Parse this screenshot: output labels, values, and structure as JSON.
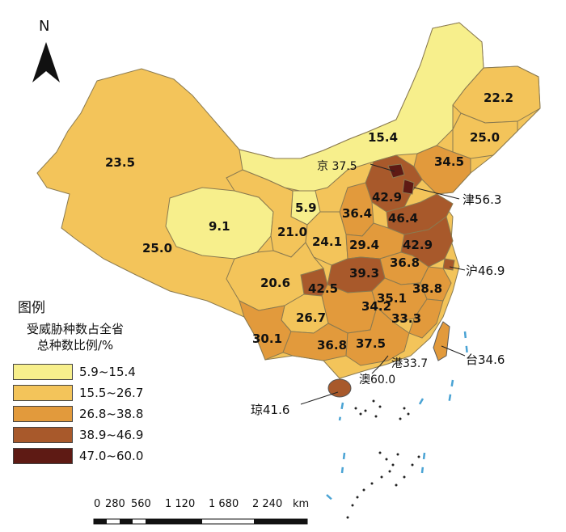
{
  "north": "N",
  "legend": {
    "title": "图例",
    "subtitle_line1": "受威胁种数占全省",
    "subtitle_line2": "总种数比例/%",
    "items": [
      {
        "range": "5.9~15.4",
        "color": "#f7ef8c"
      },
      {
        "range": "15.5~26.7",
        "color": "#f3c45a"
      },
      {
        "range": "26.8~38.8",
        "color": "#e29a3c"
      },
      {
        "range": "38.9~46.9",
        "color": "#a8592b"
      },
      {
        "range": "47.0~60.0",
        "color": "#5e1a14"
      }
    ]
  },
  "scale": {
    "ticks": [
      "0",
      "280",
      "560",
      "1 120",
      "1 680",
      "2 240"
    ],
    "unit": "km"
  },
  "regions": {
    "heilongjiang": "22.2",
    "jilin": "25.0",
    "liaoning": "34.5",
    "neimenggu": "15.4",
    "beijing": "京 37.5",
    "tianjin": "津56.3",
    "hebei": "42.9",
    "shanxi": "36.4",
    "shandong": "46.4",
    "xinjiang": "23.5",
    "xizang": "25.0",
    "qinghai": "9.1",
    "gansu": "21.0",
    "ningxia": "5.9",
    "shaanxi": "24.1",
    "henan": "29.4",
    "jiangsu": "42.9",
    "anhui": "36.8",
    "shanghai": "沪46.9",
    "hubei": "39.3",
    "chongqing": "42.5",
    "sichuan": "20.6",
    "hunan": "34.2",
    "jiangxi": "35.1",
    "zhejiang": "38.8",
    "fujian": "33.3",
    "guizhou": "26.7",
    "yunnan": "30.1",
    "guangxi": "36.8",
    "guangdong": "37.5",
    "hongkong": "港33.7",
    "macau": "澳60.0",
    "hainan": "琼41.6",
    "taiwan": "台34.6"
  }
}
